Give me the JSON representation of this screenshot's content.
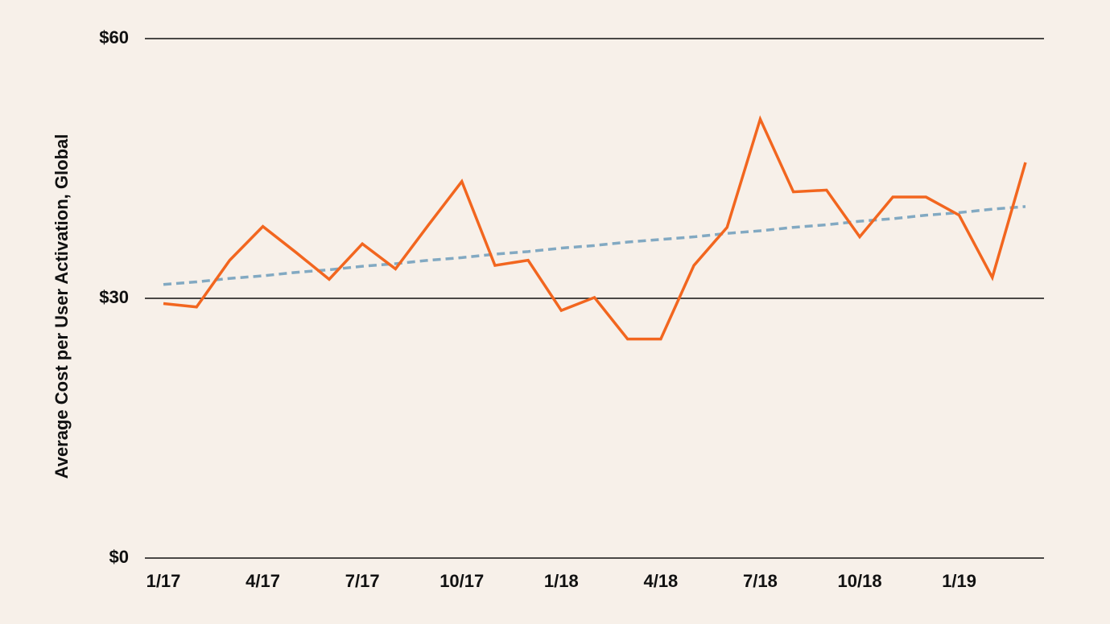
{
  "chart_data": {
    "type": "line",
    "y_label": "Average Cost per User Activation, Global",
    "categories": [
      "1/17",
      null,
      null,
      "4/17",
      null,
      null,
      "7/17",
      null,
      null,
      "10/17",
      null,
      null,
      "1/18",
      null,
      null,
      "4/18",
      null,
      null,
      "7/18",
      null,
      null,
      "10/18",
      null,
      null,
      "1/19",
      null,
      null
    ],
    "series": [
      {
        "color": "#f2661f",
        "dashed": false,
        "values": [
          29.4,
          29.0,
          34.4,
          38.3,
          35.3,
          32.2,
          36.3,
          33.4,
          38.5,
          43.5,
          33.8,
          34.4,
          28.6,
          30.1,
          25.3,
          25.3,
          33.8,
          38.2,
          50.7,
          42.3,
          42.5,
          37.1,
          41.7,
          41.7,
          39.6,
          32.4,
          45.7
        ]
      },
      {
        "color": "#82a9c2",
        "dashed": true,
        "values": [
          31.6,
          31.9,
          32.3,
          32.6,
          33.0,
          33.3,
          33.7,
          34.0,
          34.4,
          34.7,
          35.1,
          35.4,
          35.8,
          36.1,
          36.5,
          36.8,
          37.1,
          37.5,
          37.8,
          38.2,
          38.5,
          38.9,
          39.2,
          39.6,
          39.9,
          40.3,
          40.6
        ]
      }
    ],
    "ylim": [
      0,
      60
    ],
    "yticks": [
      {
        "value": 0,
        "label": "$0"
      },
      {
        "value": 30,
        "label": "$30"
      },
      {
        "value": 60,
        "label": "$60"
      }
    ],
    "grid": true
  }
}
